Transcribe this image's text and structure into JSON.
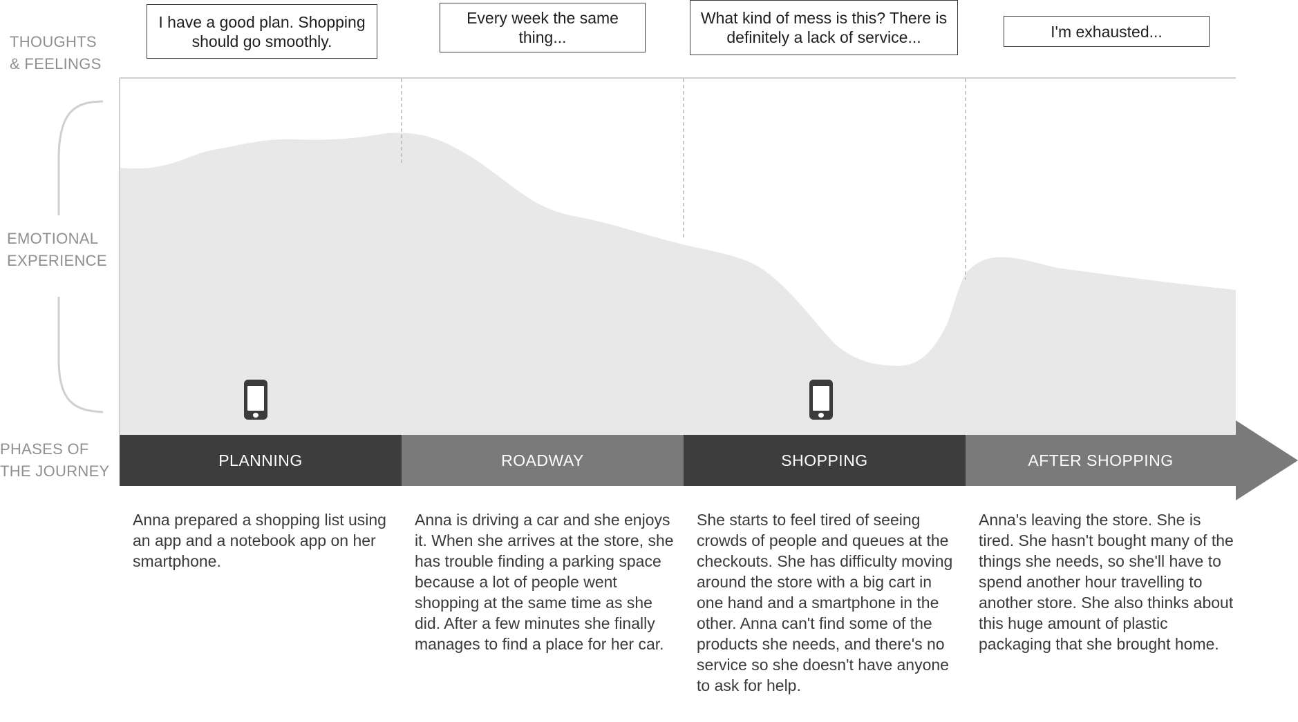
{
  "row_labels": {
    "thoughts": "THOUGHTS\n& FEELINGS",
    "emotional": "EMOTIONAL\nEXPERIENCE",
    "phases": "PHASES OF\nTHE JOURNEY"
  },
  "thoughts": [
    "I have a good plan. Shopping should go smoothly.",
    "Every week the same thing...",
    "What kind of mess is this? There is definitely a lack of service...",
    "I'm exhausted..."
  ],
  "phases": [
    {
      "label": "PLANNING",
      "color": "#3d3d3d",
      "has_phone_icon": true,
      "icon": "smartphone-icon",
      "description": "Anna prepared a shopping list using an app and a notebook app on her smartphone."
    },
    {
      "label": "ROADWAY",
      "color": "#7a7a7a",
      "has_phone_icon": false,
      "description": "Anna is driving a car and she enjoys it. When she arrives at the store, she has trouble finding a parking space because a lot of people went shopping at the same time as she did. After a few minutes she finally manages to find a place for her car."
    },
    {
      "label": "SHOPPING",
      "color": "#3d3d3d",
      "has_phone_icon": true,
      "icon": "smartphone-icon",
      "description": "She starts to feel tired of seeing crowds of people and queues at the checkouts. She has difficulty moving around the store with a big cart in one hand and a smartphone in the other. Anna can't find some of the products she needs, and there's no service so she doesn't have anyone to ask for help."
    },
    {
      "label": "AFTER SHOPPING",
      "color": "#7a7a7a",
      "has_phone_icon": false,
      "description": "Anna's leaving the store. She is tired. She hasn't bought many of the things she needs, so she'll have to spend another hour travelling to another store. She also thinks about this huge amount of plastic packaging that she brought home."
    }
  ],
  "colors": {
    "emotion_area": "#e8e8e8",
    "dark_phase": "#3d3d3d",
    "light_phase": "#7a7a7a",
    "brace": "#cfcfcf",
    "divider": "#b5b5b5",
    "label_gray": "#8f8f8f"
  }
}
